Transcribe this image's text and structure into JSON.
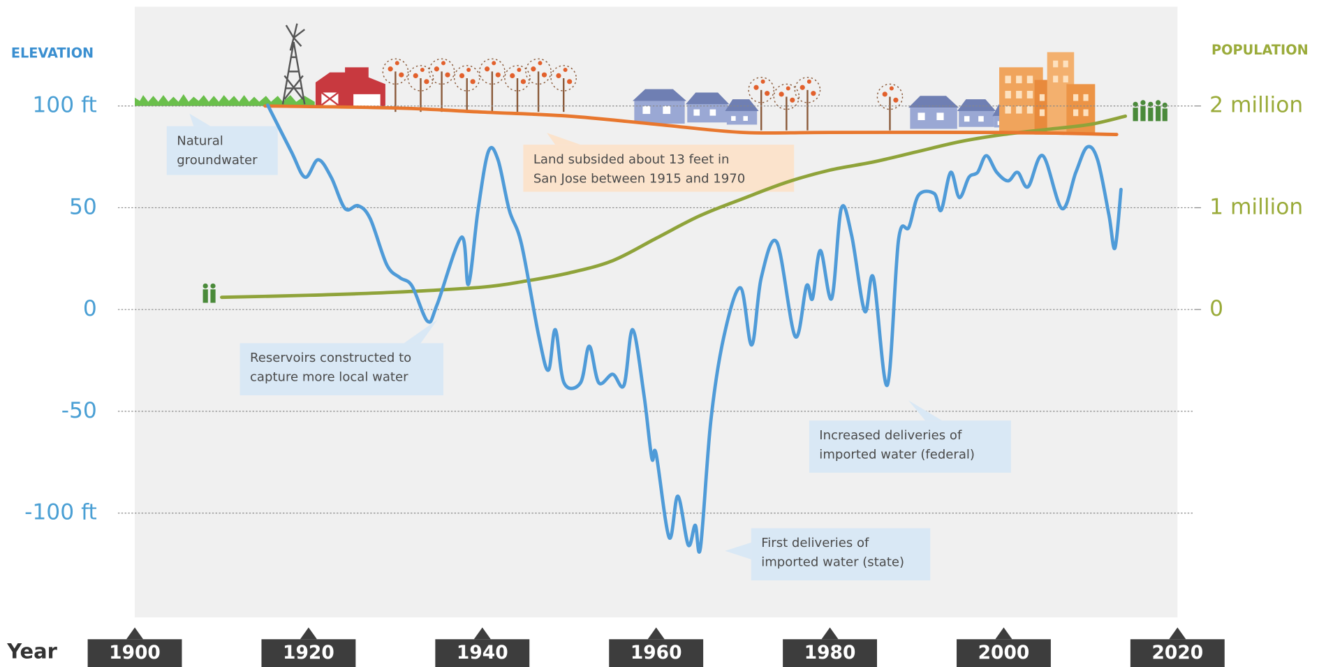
{
  "chart_data": {
    "type": "line",
    "y_axis_title": "ELEVATION",
    "y2_axis_title": "POPULATION",
    "x_axis_title": "Year",
    "xlim": [
      1900,
      2020
    ],
    "xticks": [
      1900,
      1920,
      1940,
      1960,
      1980,
      2000,
      2020
    ],
    "ylim": [
      -150,
      150
    ],
    "yticks": [
      {
        "value": 100,
        "label": "100 ft"
      },
      50,
      0,
      -50,
      {
        "value": -100,
        "label": "-100 ft"
      }
    ],
    "y2lim": [
      -3,
      3
    ],
    "y2ticks": [
      0,
      {
        "value": 1,
        "label": "1 million"
      },
      {
        "value": 2,
        "label": "2 million"
      }
    ],
    "grid": true,
    "series": [
      {
        "color": "#4f9bd8",
        "x": [
          1915.3,
          1918,
          1919.6,
          1921.1,
          1922.6,
          1924.2,
          1925.7,
          1927.1,
          1929,
          1930.5,
          1931.9,
          1933.7,
          1934.8,
          1937.6,
          1938.4,
          1939.5,
          1940.7,
          1941.8,
          1943.1,
          1944.5,
          1946.5,
          1947.6,
          1948.4,
          1949.4,
          1951.3,
          1952.3,
          1953.4,
          1955,
          1956.3,
          1957.3,
          1958.6,
          1959.5,
          1960,
          1961.5,
          1962.5,
          1963.7,
          1964.5,
          1965.1,
          1966.3,
          1967.8,
          1969.7,
          1971,
          1972.1,
          1973.9,
          1976,
          1977.3,
          1978,
          1978.9,
          1980.2,
          1981.3,
          1982.5,
          1984,
          1985,
          1986.6,
          1987.9,
          1989.1,
          1990.2,
          1992,
          1992.8,
          1993.9,
          1994.9,
          1996,
          1997,
          1998,
          1999.2,
          2000.5,
          2001.6,
          2002.8,
          2004.5,
          2006.7,
          2008.3,
          2009.6,
          2010.8,
          2012.1,
          2012.8,
          2013.5
        ],
        "values": [
          100.4,
          77.7,
          65,
          73.6,
          65,
          49.6,
          51,
          44.6,
          22,
          15.7,
          11.6,
          -5.8,
          2.5,
          35.5,
          12.4,
          48.8,
          77.7,
          73.6,
          48.8,
          32.2,
          -13.2,
          -29.8,
          -9.9,
          -36,
          -36,
          -18,
          -36,
          -31.8,
          -37.2,
          -9.9,
          -42,
          -73,
          -71,
          -112,
          -91.7,
          -115.7,
          -106,
          -117,
          -54.5,
          -13.2,
          10.7,
          -17.4,
          15.7,
          33,
          -13.2,
          11.6,
          5.4,
          29,
          5.4,
          49.6,
          36.4,
          -0.8,
          15.7,
          -37.2,
          34.3,
          40.5,
          56.2,
          57,
          48.8,
          67.4,
          55,
          65,
          67.4,
          75.6,
          67.4,
          63.2,
          67.4,
          60.3,
          75.6,
          49.6,
          67.4,
          79.8,
          73.6,
          46.7,
          30.2,
          59
        ]
      },
      {
        "color": "#e8772e",
        "x": [
          1915,
          1930,
          1940,
          1950,
          1960,
          1970,
          1980,
          2000,
          2013
        ],
        "values": [
          100,
          99,
          97,
          95,
          91,
          87,
          87,
          87,
          86
        ]
      },
      {
        "color": "#8fa33a",
        "axis": "y2",
        "x": [
          1910,
          1920,
          1930,
          1940,
          1945,
          1950,
          1955,
          1960,
          1965,
          1970,
          1975,
          1980,
          1985,
          1990,
          1995,
          2000,
          2005,
          2010,
          2014
        ],
        "values": [
          0.12,
          0.14,
          0.17,
          0.22,
          0.28,
          0.36,
          0.48,
          0.7,
          0.92,
          1.09,
          1.25,
          1.37,
          1.45,
          1.55,
          1.65,
          1.72,
          1.77,
          1.82,
          1.9
        ]
      }
    ],
    "annotations": [
      {
        "lines": [
          "Natural",
          "groundwater"
        ]
      },
      {
        "lines": [
          "Land subsided about 13 feet in",
          "San Jose between 1915 and 1970"
        ]
      },
      {
        "lines": [
          "Reservoirs constructed to",
          "capture more local water"
        ]
      },
      {
        "lines": [
          "Increased deliveries of",
          "imported water (federal)"
        ]
      },
      {
        "lines": [
          "First deliveries of",
          "imported water (state)"
        ]
      }
    ]
  }
}
